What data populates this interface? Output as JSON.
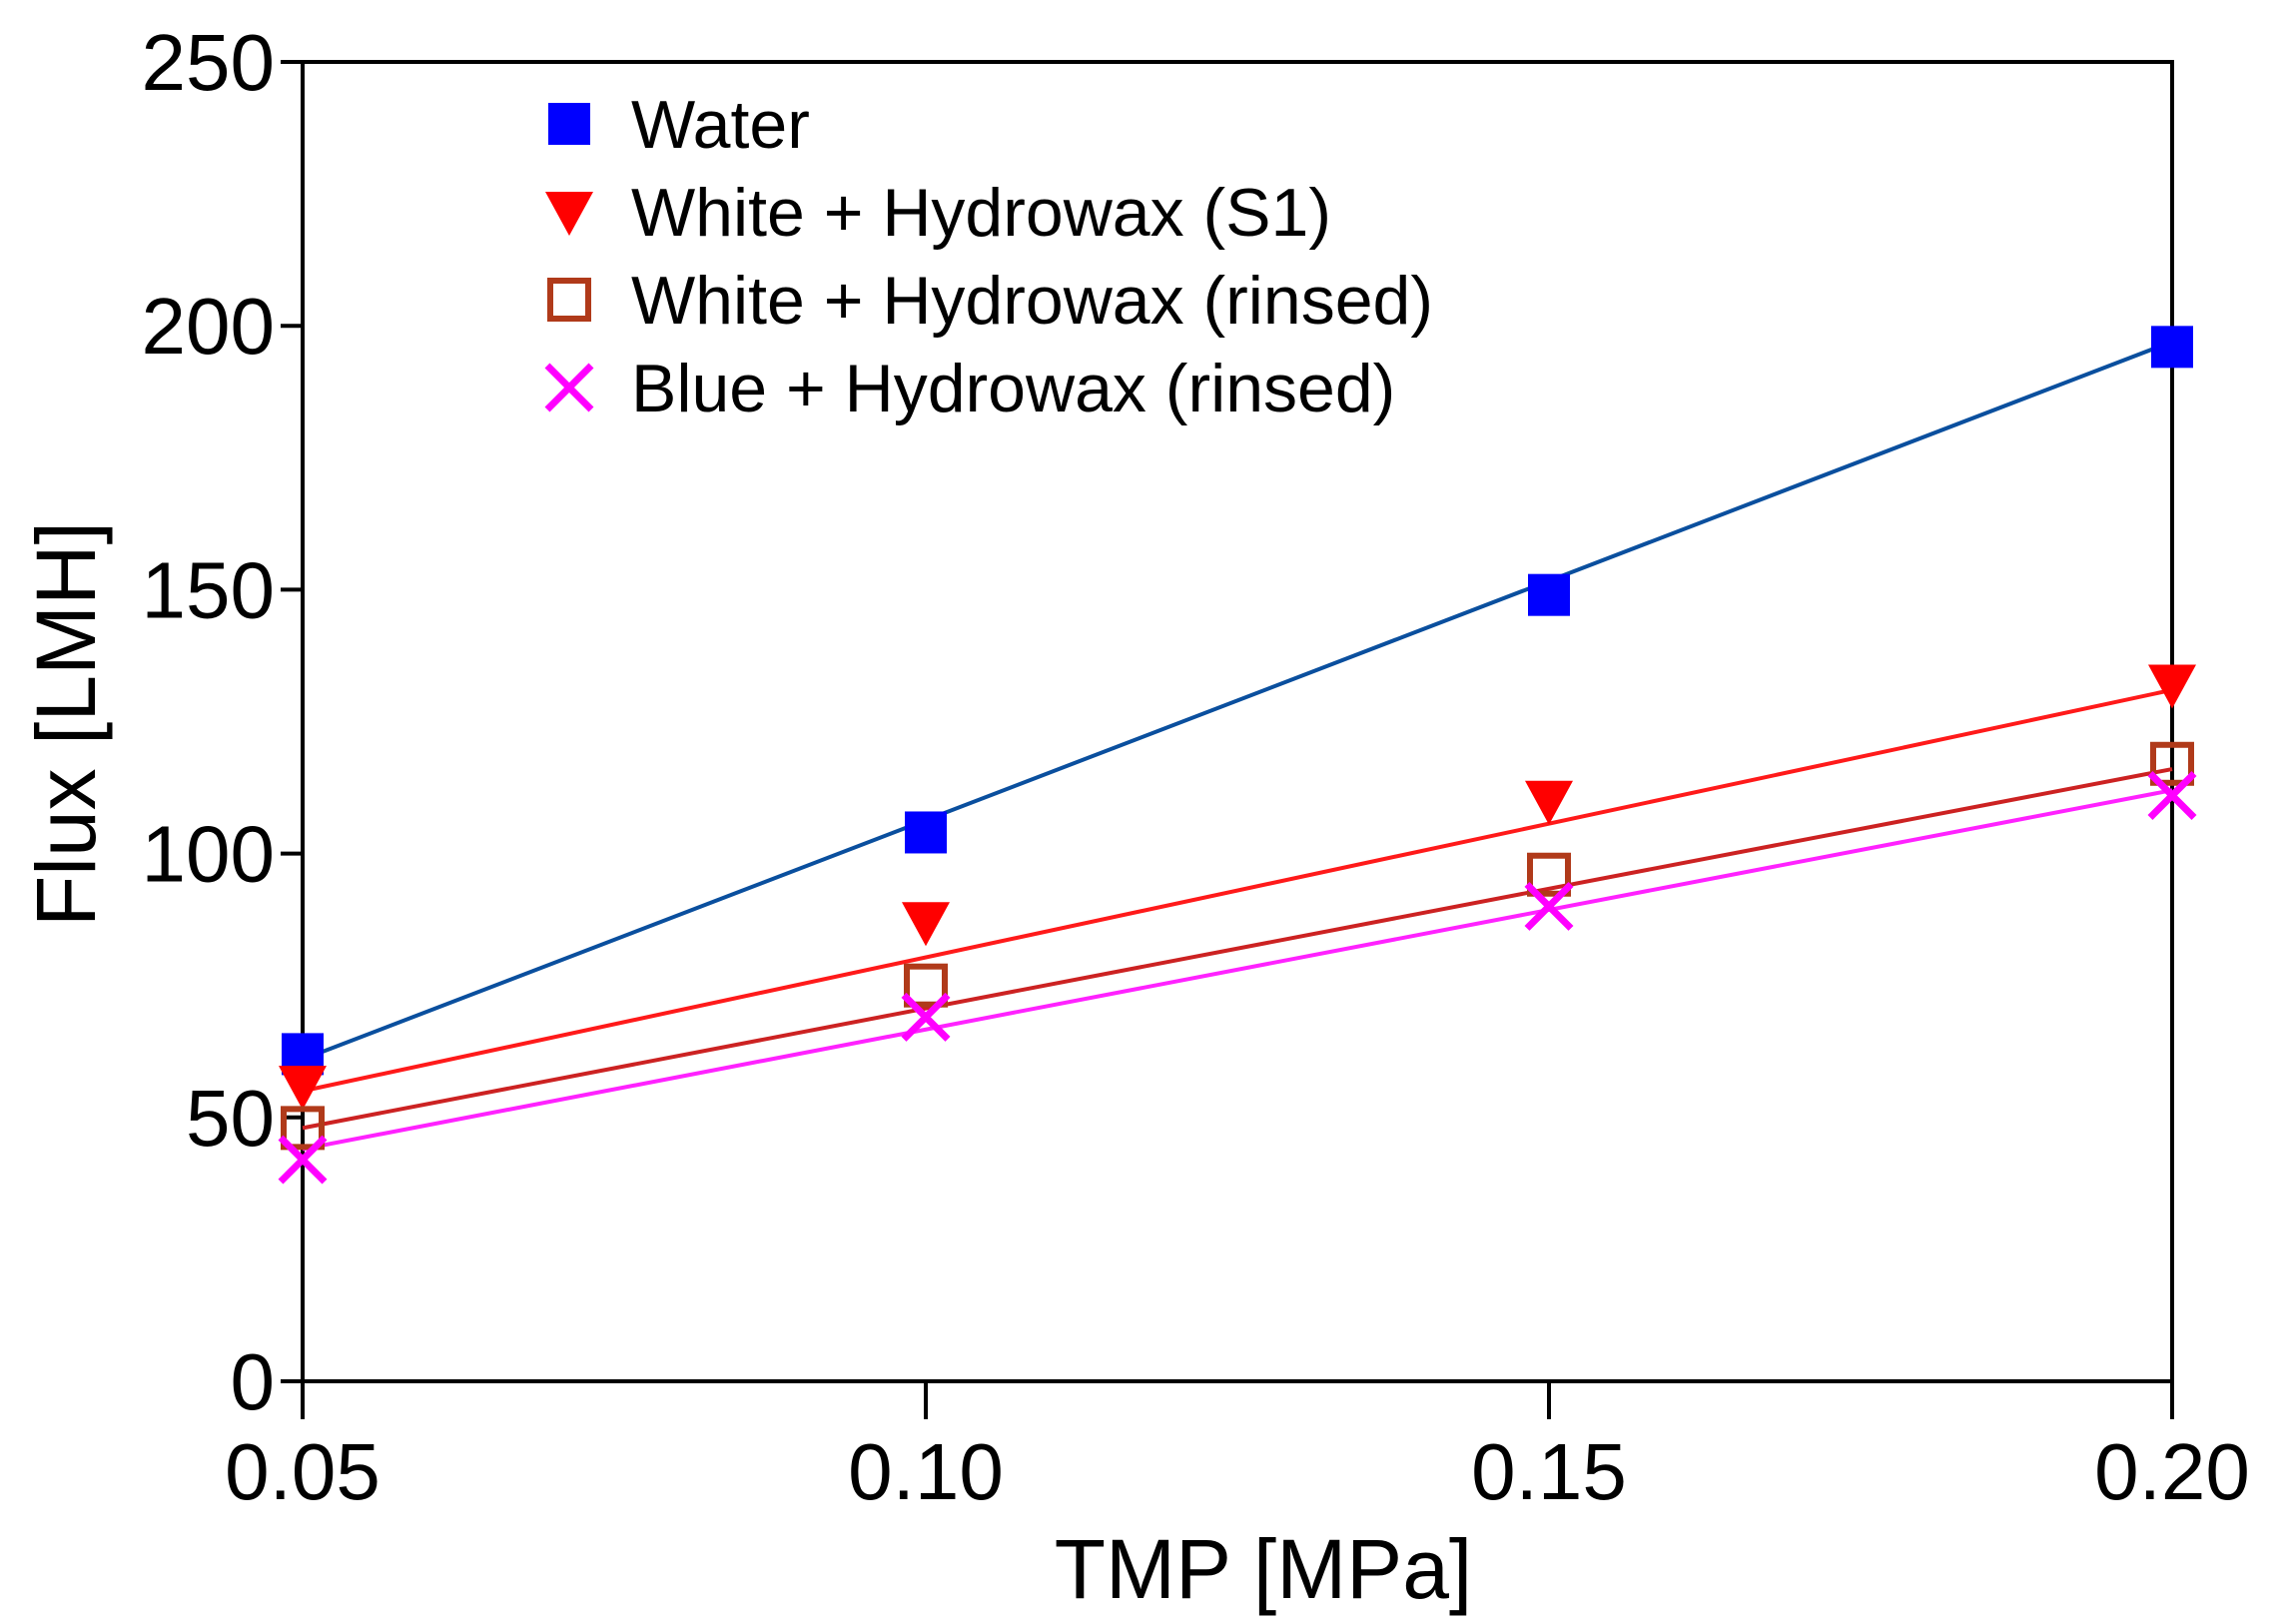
{
  "chart_data": {
    "type": "scatter",
    "title": "",
    "xlabel": "TMP [MPa]",
    "ylabel": "Flux [LMH]",
    "xlim": [
      0.05,
      0.2
    ],
    "ylim": [
      0,
      250
    ],
    "x_ticks": [
      0.05,
      0.1,
      0.15,
      0.2
    ],
    "x_tick_labels": [
      "0.05",
      "0.10",
      "0.15",
      "0.20"
    ],
    "y_ticks": [
      0,
      50,
      100,
      150,
      200,
      250
    ],
    "y_tick_labels": [
      "0",
      "50",
      "100",
      "150",
      "200",
      "250"
    ],
    "grid": false,
    "legend_position": "top-left",
    "series": [
      {
        "name": "Water",
        "marker": "filled-square",
        "color": "#0000ff",
        "line_color": "#0a4f9e",
        "x": [
          0.05,
          0.1,
          0.15,
          0.2
        ],
        "values": [
          62,
          104,
          149,
          196
        ],
        "fit": [
          61,
          197
        ]
      },
      {
        "name": "White + Hydrowax (S1)",
        "marker": "filled-triangle-down",
        "color": "#ff0000",
        "line_color": "#ff1a1a",
        "x": [
          0.05,
          0.1,
          0.15,
          0.2
        ],
        "values": [
          56,
          87,
          110,
          132
        ],
        "fit": [
          55,
          131
        ]
      },
      {
        "name": "White + Hydrowax (rinsed)",
        "marker": "open-square",
        "color": "#b03a1a",
        "line_color": "#cc2222",
        "x": [
          0.05,
          0.1,
          0.15,
          0.2
        ],
        "values": [
          48,
          75,
          96,
          117
        ],
        "fit": [
          48,
          116
        ]
      },
      {
        "name": "Blue + Hydrowax (rinsed)",
        "marker": "x",
        "color": "#ff00ff",
        "line_color": "#ff22ff",
        "x": [
          0.05,
          0.1,
          0.15,
          0.2
        ],
        "values": [
          42,
          69,
          90,
          111
        ],
        "fit": [
          44,
          112
        ]
      }
    ]
  }
}
